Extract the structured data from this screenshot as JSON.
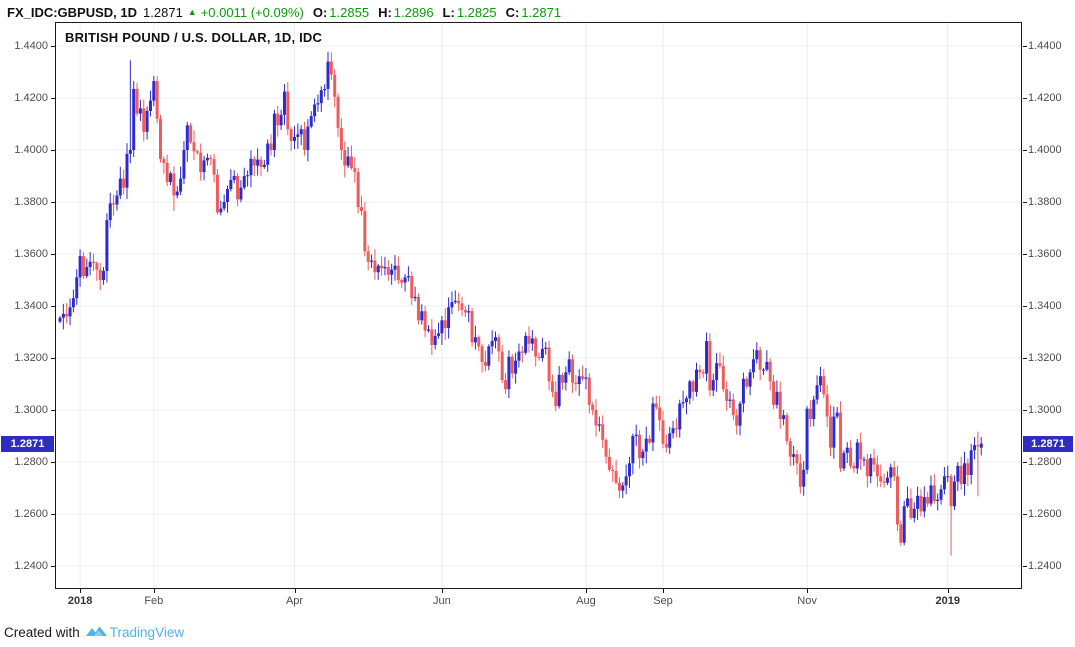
{
  "header": {
    "symbol": "FX_IDC:GBPUSD, 1D",
    "last_price": "1.2871",
    "change_arrow": "▲",
    "change": "+0.0011 (+0.09%)",
    "ohlc": [
      {
        "label": "O:",
        "value": "1.2855"
      },
      {
        "label": "H:",
        "value": "1.2896"
      },
      {
        "label": "L:",
        "value": "1.2825"
      },
      {
        "label": "C:",
        "value": "1.2871"
      }
    ]
  },
  "chart": {
    "title": "BRITISH POUND / U.S. DOLLAR, 1D, IDC",
    "price_label": "1.2871"
  },
  "footer": {
    "created_with": "Created with",
    "brand": "TradingView"
  },
  "colors": {
    "up": "#2e2bcd",
    "down": "#ef5c5c",
    "badge": "#2f2dc0",
    "green": "#0b9b0b",
    "grid": "#e9edf2",
    "axis_text": "#4d4d4d",
    "brand_blue": "#51b3e6"
  },
  "chart_data": {
    "type": "candlestick",
    "title": "BRITISH POUND / U.S. DOLLAR, 1D, IDC",
    "interval": "1D",
    "last_price": 1.2871,
    "y_axis": {
      "min": 1.24,
      "max": 1.44,
      "step": 0.02,
      "labels": [
        "1.4400",
        "1.4200",
        "1.4000",
        "1.3800",
        "1.3600",
        "1.3400",
        "1.3200",
        "1.3000",
        "1.2800",
        "1.2600",
        "1.2400"
      ]
    },
    "x_ticks": [
      {
        "label": "2018",
        "index": 6,
        "bold": true
      },
      {
        "label": "Feb",
        "index": 28,
        "bold": false
      },
      {
        "label": "Apr",
        "index": 70,
        "bold": false
      },
      {
        "label": "Jun",
        "index": 114,
        "bold": false
      },
      {
        "label": "Aug",
        "index": 157,
        "bold": false
      },
      {
        "label": "Sep",
        "index": 180,
        "bold": false
      },
      {
        "label": "Nov",
        "index": 223,
        "bold": false
      },
      {
        "label": "2019",
        "index": 265,
        "bold": true
      }
    ],
    "closes": [
      1.3355,
      1.337,
      1.336,
      1.3395,
      1.343,
      1.351,
      1.3592,
      1.3515,
      1.355,
      1.357,
      1.3565,
      1.354,
      1.35,
      1.3535,
      1.373,
      1.3795,
      1.379,
      1.3825,
      1.389,
      1.3855,
      1.3985,
      1.4,
      1.4235,
      1.414,
      1.416,
      1.407,
      1.415,
      1.419,
      1.4265,
      1.412,
      1.3965,
      1.395,
      1.3877,
      1.391,
      1.3825,
      1.384,
      1.389,
      1.4,
      1.4095,
      1.403,
      1.3995,
      1.399,
      1.3915,
      1.396,
      1.397,
      1.3965,
      1.3905,
      1.376,
      1.3775,
      1.38,
      1.385,
      1.3885,
      1.39,
      1.381,
      1.3855,
      1.39,
      1.3903,
      1.3966,
      1.394,
      1.3963,
      1.3935,
      1.3943,
      1.4025,
      1.4,
      1.414,
      1.4095,
      1.4135,
      1.4225,
      1.408,
      1.4035,
      1.405,
      1.406,
      1.408,
      1.4,
      1.409,
      1.413,
      1.4175,
      1.418,
      1.423,
      1.4235,
      1.434,
      1.429,
      1.4205,
      1.4085,
      1.4,
      1.394,
      1.3975,
      1.393,
      1.3915,
      1.378,
      1.3765,
      1.361,
      1.357,
      1.3575,
      1.353,
      1.3555,
      1.3545,
      1.355,
      1.352,
      1.354,
      1.3555,
      1.35,
      1.349,
      1.351,
      1.3515,
      1.343,
      1.3435,
      1.3345,
      1.338,
      1.3305,
      1.331,
      1.325,
      1.3285,
      1.3295,
      1.3345,
      1.3315,
      1.3395,
      1.3415,
      1.342,
      1.341,
      1.3385,
      1.3375,
      1.338,
      1.326,
      1.328,
      1.3245,
      1.3185,
      1.317,
      1.3245,
      1.3265,
      1.328,
      1.3225,
      1.3115,
      1.308,
      1.3205,
      1.314,
      1.319,
      1.3225,
      1.322,
      1.3285,
      1.3255,
      1.3275,
      1.3205,
      1.32,
      1.3235,
      1.324,
      1.311,
      1.307,
      1.3015,
      1.3135,
      1.3105,
      1.3145,
      1.3195,
      1.3105,
      1.31,
      1.313,
      1.312,
      1.3125,
      1.302,
      1.3,
      1.294,
      1.2945,
      1.2885,
      1.282,
      1.277,
      1.2765,
      1.272,
      1.269,
      1.271,
      1.2745,
      1.2795,
      1.29,
      1.2905,
      1.2815,
      1.284,
      1.289,
      1.2875,
      1.3025,
      1.301,
      1.296,
      1.287,
      1.2855,
      1.291,
      1.293,
      1.2925,
      1.3025,
      1.303,
      1.3045,
      1.311,
      1.307,
      1.3155,
      1.3145,
      1.314,
      1.3265,
      1.3075,
      1.3115,
      1.318,
      1.317,
      1.308,
      1.3035,
      1.304,
      1.298,
      1.294,
      1.3025,
      1.312,
      1.309,
      1.3145,
      1.3195,
      1.323,
      1.3155,
      1.3155,
      1.3185,
      1.311,
      1.302,
      1.307,
      1.2965,
      1.298,
      1.288,
      1.282,
      1.283,
      1.2795,
      1.2705,
      1.277,
      1.3005,
      1.2965,
      1.304,
      1.3095,
      1.313,
      1.306,
      1.2975,
      1.2855,
      1.2975,
      1.299,
      1.2775,
      1.2835,
      1.2855,
      1.2785,
      1.2775,
      1.2875,
      1.281,
      1.281,
      1.2745,
      1.2815,
      1.279,
      1.2745,
      1.2725,
      1.272,
      1.274,
      1.278,
      1.2745,
      1.256,
      1.249,
      1.263,
      1.266,
      1.2585,
      1.262,
      1.267,
      1.261,
      1.2665,
      1.264,
      1.271,
      1.265,
      1.2655,
      1.2695,
      1.2745,
      1.2745,
      1.263,
      1.2725,
      1.2785,
      1.2715,
      1.2795,
      1.275,
      1.2845,
      1.2865,
      1.286,
      1.2871
    ],
    "overrides": {
      "21": {
        "h": 1.4345
      },
      "34": {
        "l": 1.3765
      },
      "81": {
        "h": 1.4376
      },
      "167": {
        "l": 1.2662
      },
      "193": {
        "h": 1.3298
      },
      "251": {
        "l": 1.2477
      },
      "266": {
        "l": 1.244
      },
      "274": {
        "h": 1.2917,
        "l": 1.2668
      },
      "275": {
        "o": 1.2855,
        "h": 1.2896,
        "l": 1.2825,
        "c": 1.2871
      }
    }
  }
}
